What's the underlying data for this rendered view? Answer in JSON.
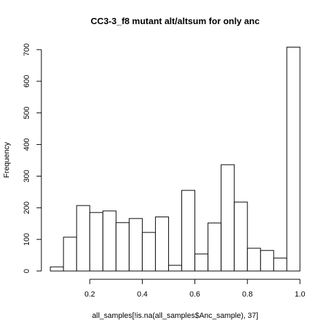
{
  "chart_data": {
    "type": "bar",
    "title": "CC3-3_f8 mutant alt/altsum for only anc",
    "xlabel": "all_samples[!is.na(all_samples$Anc_sample), 37]",
    "ylabel": "Frequency",
    "xlim": [
      0.05,
      1.0
    ],
    "ylim": [
      0,
      700
    ],
    "x_ticks": [
      0.2,
      0.4,
      0.6,
      0.8,
      1.0
    ],
    "x_tick_labels": [
      "0.2",
      "0.4",
      "0.6",
      "0.8",
      "1.0"
    ],
    "y_ticks": [
      0,
      100,
      200,
      300,
      400,
      500,
      600,
      700
    ],
    "y_tick_labels": [
      "0",
      "100",
      "200",
      "300",
      "400",
      "500",
      "600",
      "700"
    ],
    "bins": [
      {
        "x0": 0.05,
        "x1": 0.1,
        "value": 13
      },
      {
        "x0": 0.1,
        "x1": 0.15,
        "value": 107
      },
      {
        "x0": 0.15,
        "x1": 0.2,
        "value": 207
      },
      {
        "x0": 0.2,
        "x1": 0.25,
        "value": 185
      },
      {
        "x0": 0.25,
        "x1": 0.3,
        "value": 190
      },
      {
        "x0": 0.3,
        "x1": 0.35,
        "value": 153
      },
      {
        "x0": 0.35,
        "x1": 0.4,
        "value": 166
      },
      {
        "x0": 0.4,
        "x1": 0.45,
        "value": 122
      },
      {
        "x0": 0.45,
        "x1": 0.5,
        "value": 171
      },
      {
        "x0": 0.5,
        "x1": 0.55,
        "value": 18
      },
      {
        "x0": 0.55,
        "x1": 0.6,
        "value": 255
      },
      {
        "x0": 0.6,
        "x1": 0.65,
        "value": 54
      },
      {
        "x0": 0.65,
        "x1": 0.7,
        "value": 152
      },
      {
        "x0": 0.7,
        "x1": 0.75,
        "value": 336
      },
      {
        "x0": 0.75,
        "x1": 0.8,
        "value": 218
      },
      {
        "x0": 0.8,
        "x1": 0.85,
        "value": 72
      },
      {
        "x0": 0.85,
        "x1": 0.9,
        "value": 65
      },
      {
        "x0": 0.9,
        "x1": 0.95,
        "value": 41
      },
      {
        "x0": 0.95,
        "x1": 1.0,
        "value": 708
      }
    ]
  }
}
